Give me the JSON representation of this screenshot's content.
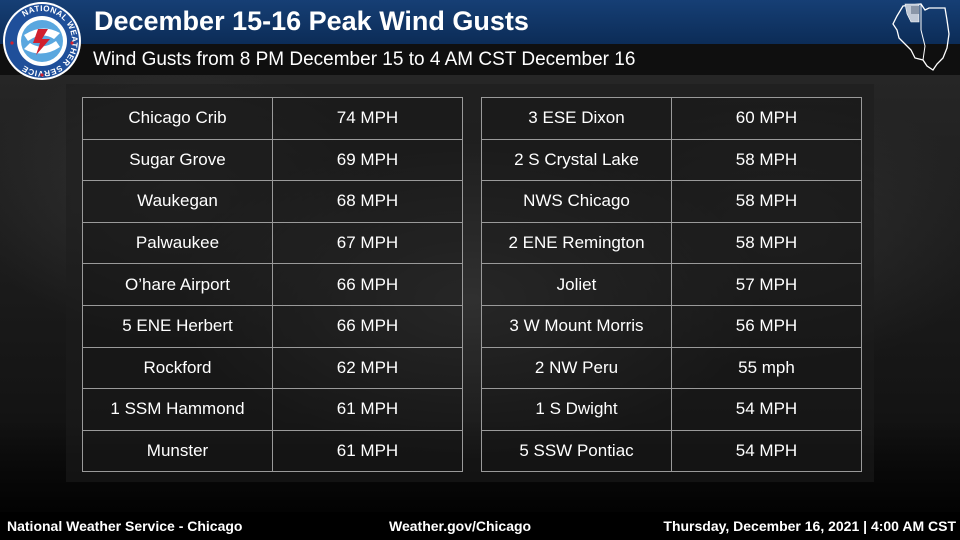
{
  "header": {
    "title": "December 15-16 Peak Wind Gusts",
    "subtitle": "Wind Gusts from 8 PM December 15 to 4 AM CST December 16"
  },
  "logo": {
    "text": "NATIONAL WEATHER SERVICE",
    "icon": "nws-logo-icon"
  },
  "tables": {
    "left": [
      {
        "location": "Chicago Crib",
        "gust": "74 MPH"
      },
      {
        "location": "Sugar Grove",
        "gust": "69 MPH"
      },
      {
        "location": "Waukegan",
        "gust": "68 MPH"
      },
      {
        "location": "Palwaukee",
        "gust": "67 MPH"
      },
      {
        "location": "O’hare Airport",
        "gust": "66 MPH"
      },
      {
        "location": "5 ENE Herbert",
        "gust": "66 MPH"
      },
      {
        "location": "Rockford",
        "gust": "62 MPH"
      },
      {
        "location": "1 SSM Hammond",
        "gust": "61 MPH"
      },
      {
        "location": "Munster",
        "gust": "61 MPH"
      }
    ],
    "right": [
      {
        "location": "3 ESE Dixon",
        "gust": "60 MPH"
      },
      {
        "location": "2 S Crystal Lake",
        "gust": "58 MPH"
      },
      {
        "location": "NWS Chicago",
        "gust": "58 MPH"
      },
      {
        "location": "2 ENE Remington",
        "gust": "58 MPH"
      },
      {
        "location": "Joliet",
        "gust": "57 MPH"
      },
      {
        "location": "3 W Mount Morris",
        "gust": "56 MPH"
      },
      {
        "location": "2 NW Peru",
        "gust": "55 mph"
      },
      {
        "location": "1 S Dwight",
        "gust": "54 MPH"
      },
      {
        "location": "5 SSW Pontiac",
        "gust": "54 MPH"
      }
    ]
  },
  "footer": {
    "office": "National Weather Service - Chicago",
    "website": "Weather.gov/Chicago",
    "timestamp": "Thursday, December 16, 2021 | 4:00 AM CST"
  },
  "colors": {
    "header_blue": "#163f75",
    "logo_blue": "#1f4f9a",
    "logo_red": "#d0202e"
  }
}
